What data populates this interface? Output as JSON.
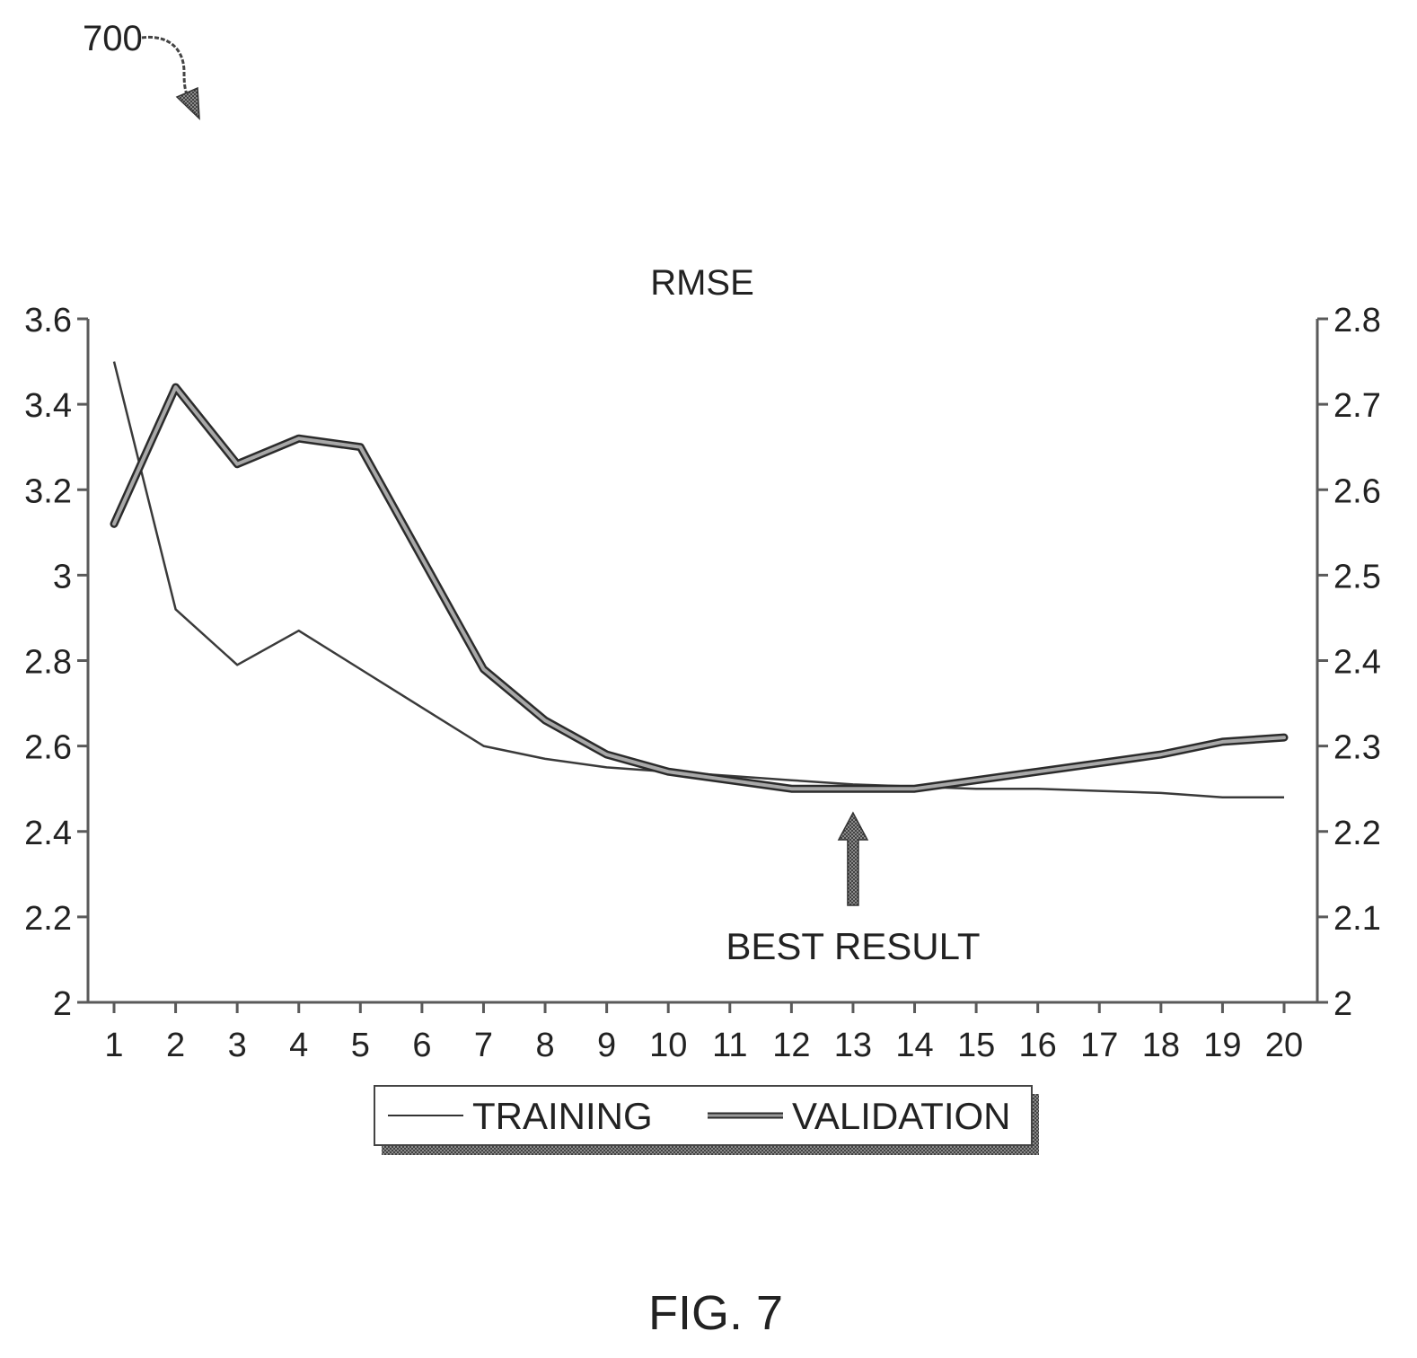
{
  "figure": {
    "ref_number": "700",
    "caption": "FIG. 7"
  },
  "chart_data": {
    "type": "line",
    "title": "RMSE",
    "x": [
      1,
      2,
      3,
      4,
      5,
      6,
      7,
      8,
      9,
      10,
      11,
      12,
      13,
      14,
      15,
      16,
      17,
      18,
      19,
      20
    ],
    "xlabel": "",
    "ylabel": "",
    "ylim": [
      2,
      3.6
    ],
    "y_ticks": [
      "2",
      "2.2",
      "2.4",
      "2.6",
      "2.8",
      "3",
      "3.2",
      "3.4",
      "3.6"
    ],
    "y2lim": [
      2,
      2.8
    ],
    "y2_ticks": [
      "2",
      "2.1",
      "2.2",
      "2.3",
      "2.4",
      "2.5",
      "2.6",
      "2.7",
      "2.8"
    ],
    "series": [
      {
        "name": "TRAINING",
        "axis": "left",
        "values": [
          3.5,
          2.92,
          2.79,
          2.87,
          2.78,
          2.69,
          2.6,
          2.57,
          2.55,
          2.54,
          2.53,
          2.52,
          2.51,
          2.505,
          2.5,
          2.5,
          2.495,
          2.49,
          2.48,
          2.48
        ]
      },
      {
        "name": "VALIDATION",
        "axis": "right",
        "values": [
          2.56,
          2.72,
          2.63,
          2.66,
          2.65,
          2.52,
          2.39,
          2.33,
          2.29,
          2.27,
          2.26,
          2.25,
          2.25,
          2.25,
          2.26,
          2.27,
          2.28,
          2.29,
          2.305,
          2.31
        ]
      }
    ],
    "annotation": {
      "label": "BEST RESULT",
      "x": 13
    },
    "legend_position": "bottom",
    "grid": false
  },
  "colors": {
    "training": "#3a3a3a",
    "validation": "#4a4a4a",
    "axis": "#6a6a6a",
    "text": "#222222"
  }
}
